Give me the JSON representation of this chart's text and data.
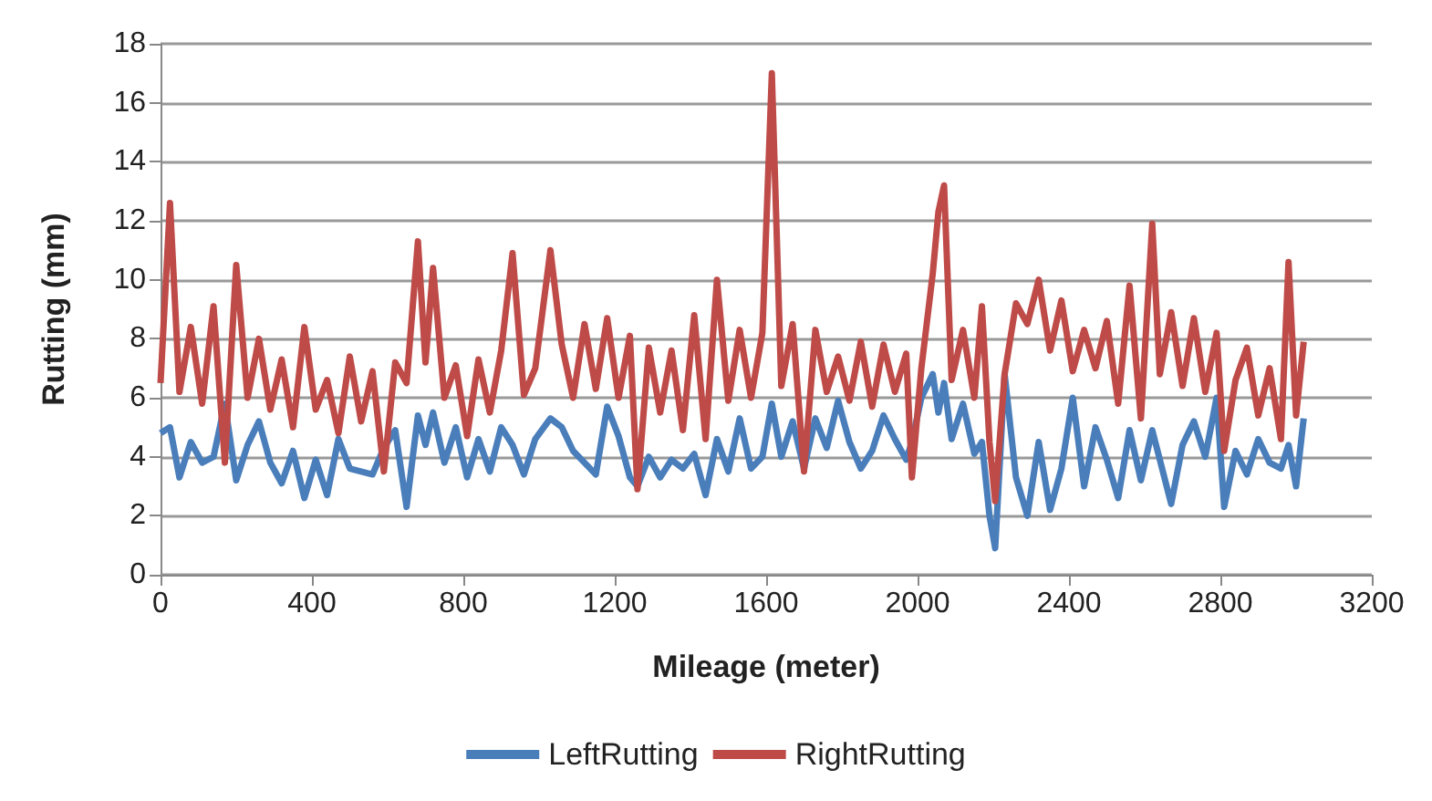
{
  "chart_data": {
    "type": "line",
    "xlabel": "Mileage (meter)",
    "ylabel": "Rutting (mm)",
    "x": [
      0,
      25,
      50,
      80,
      110,
      140,
      170,
      200,
      230,
      260,
      290,
      320,
      350,
      380,
      410,
      440,
      470,
      500,
      530,
      560,
      590,
      620,
      650,
      680,
      700,
      720,
      750,
      780,
      810,
      840,
      870,
      900,
      930,
      960,
      990,
      1030,
      1060,
      1090,
      1120,
      1150,
      1180,
      1210,
      1240,
      1260,
      1290,
      1320,
      1350,
      1380,
      1410,
      1440,
      1470,
      1500,
      1530,
      1560,
      1590,
      1615,
      1640,
      1670,
      1700,
      1730,
      1760,
      1790,
      1820,
      1850,
      1880,
      1910,
      1940,
      1970,
      1985,
      2010,
      2040,
      2055,
      2070,
      2090,
      2120,
      2150,
      2170,
      2190,
      2205,
      2230,
      2260,
      2290,
      2320,
      2350,
      2380,
      2410,
      2440,
      2470,
      2500,
      2530,
      2560,
      2590,
      2620,
      2640,
      2670,
      2700,
      2730,
      2760,
      2790,
      2810,
      2840,
      2870,
      2900,
      2930,
      2960,
      2980,
      3000,
      3020
    ],
    "series": [
      {
        "name": "LeftRutting",
        "color": "#4a7ebb",
        "values": [
          4.8,
          5.0,
          3.3,
          4.5,
          3.8,
          4.0,
          5.8,
          3.2,
          4.4,
          5.2,
          3.8,
          3.1,
          4.2,
          2.6,
          3.9,
          2.7,
          4.6,
          3.6,
          3.5,
          3.4,
          4.3,
          4.9,
          2.3,
          5.4,
          4.4,
          5.5,
          3.8,
          5.0,
          3.3,
          4.6,
          3.5,
          5.0,
          4.4,
          3.4,
          4.6,
          5.3,
          5.0,
          4.2,
          3.8,
          3.4,
          5.7,
          4.7,
          3.3,
          3.0,
          4.0,
          3.3,
          3.9,
          3.6,
          4.1,
          2.7,
          4.6,
          3.5,
          5.3,
          3.6,
          4.0,
          5.8,
          4.0,
          5.2,
          3.6,
          5.3,
          4.3,
          5.9,
          4.5,
          3.6,
          4.2,
          5.4,
          4.6,
          3.9,
          4.5,
          6.0,
          6.8,
          5.5,
          6.5,
          4.6,
          5.8,
          4.1,
          4.5,
          2.0,
          0.9,
          6.8,
          3.3,
          2.0,
          4.5,
          2.2,
          3.6,
          6.0,
          3.0,
          5.0,
          3.9,
          2.6,
          4.9,
          3.2,
          4.9,
          3.9,
          2.4,
          4.4,
          5.2,
          4.0,
          6.0,
          2.3,
          4.2,
          3.4,
          4.6,
          3.8,
          3.6,
          4.4,
          3.0,
          5.3
        ]
      },
      {
        "name": "RightRutting",
        "color": "#be4b48",
        "values": [
          6.5,
          12.6,
          6.2,
          8.4,
          5.8,
          9.1,
          3.8,
          10.5,
          6.0,
          8.0,
          5.6,
          7.3,
          5.0,
          8.4,
          5.6,
          6.6,
          4.8,
          7.4,
          5.2,
          6.9,
          3.5,
          7.2,
          6.5,
          11.3,
          7.2,
          10.4,
          6.0,
          7.1,
          4.7,
          7.3,
          5.5,
          7.6,
          10.9,
          6.1,
          7.0,
          11.0,
          7.8,
          6.0,
          8.5,
          6.3,
          8.7,
          6.0,
          8.1,
          2.9,
          7.7,
          5.5,
          7.6,
          4.9,
          8.8,
          4.6,
          10.0,
          5.9,
          8.3,
          6.0,
          8.2,
          17.0,
          6.4,
          8.5,
          3.5,
          8.3,
          6.2,
          7.4,
          5.9,
          7.9,
          5.7,
          7.8,
          6.2,
          7.5,
          3.3,
          7.0,
          10.2,
          12.3,
          13.2,
          6.6,
          8.3,
          6.0,
          9.1,
          4.5,
          2.5,
          6.8,
          9.2,
          8.5,
          10.0,
          7.6,
          9.3,
          6.9,
          8.3,
          7.0,
          8.6,
          5.8,
          9.8,
          5.3,
          11.9,
          6.8,
          8.9,
          6.4,
          8.7,
          6.2,
          8.2,
          4.2,
          6.6,
          7.7,
          5.4,
          7.0,
          4.6,
          10.6,
          5.4,
          7.9
        ]
      }
    ],
    "xlim": [
      0,
      3200
    ],
    "xticks": [
      0,
      400,
      800,
      1200,
      1600,
      2000,
      2400,
      2800,
      3200
    ],
    "ylim": [
      0,
      18
    ],
    "yticks": [
      0,
      2,
      4,
      6,
      8,
      10,
      12,
      14,
      16,
      18
    ],
    "grid": "y",
    "legend": "bottom"
  }
}
